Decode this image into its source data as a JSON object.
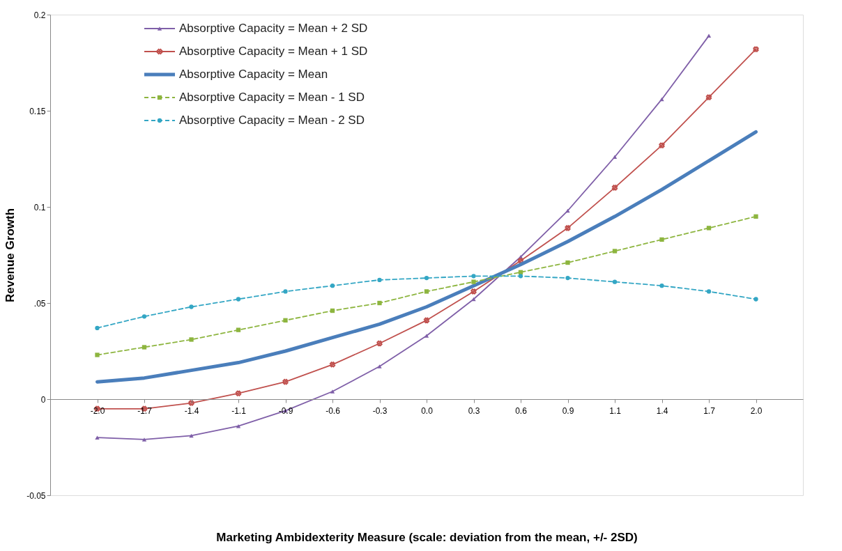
{
  "chart_data": {
    "type": "line",
    "xlabel": "Marketing Ambidexterity Measure (scale: deviation from the mean, +/- 2SD)",
    "ylabel": "Revenue Growth",
    "categories": [
      "-2.0",
      "-1.7",
      "-1.4",
      "-1.1",
      "-0.9",
      "-0.6",
      "-0.3",
      "0.0",
      "0.3",
      "0.6",
      "0.9",
      "1.1",
      "1.4",
      "1.7",
      "2.0"
    ],
    "ylim": [
      -0.05,
      0.2
    ],
    "yticks": [
      {
        "value": -0.05,
        "label": "-0.05"
      },
      0,
      {
        "value": 0.05,
        "label": ".05"
      },
      0.1,
      0.15,
      0.2
    ],
    "grid": false,
    "legend": "top left",
    "series": [
      {
        "name": "Absorptive Capacity = Mean + 2 SD",
        "color": "#7f5fa8",
        "marker": "triangle",
        "line_style": "solid",
        "values": [
          -0.02,
          -0.021,
          -0.019,
          -0.014,
          -0.006,
          0.004,
          0.017,
          0.033,
          0.052,
          0.074,
          0.098,
          0.126,
          0.156,
          0.189,
          null
        ]
      },
      {
        "name": "Absorptive Capacity = Mean + 1 SD",
        "color": "#c0504d",
        "marker": "cross",
        "line_style": "solid",
        "values": [
          -0.005,
          -0.005,
          -0.002,
          0.003,
          0.009,
          0.018,
          0.029,
          0.041,
          0.056,
          0.072,
          0.089,
          0.11,
          0.132,
          0.157,
          0.182
        ]
      },
      {
        "name": "Absorptive Capacity = Mean",
        "color": "#4a7ebb",
        "marker": "none",
        "line_style": "solid",
        "values": [
          0.009,
          0.011,
          0.015,
          0.019,
          0.025,
          0.032,
          0.039,
          0.048,
          0.059,
          0.07,
          0.082,
          0.095,
          0.109,
          0.124,
          0.139
        ]
      },
      {
        "name": "Absorptive Capacity = Mean - 1 SD",
        "color": "#8db53f",
        "marker": "square",
        "line_style": "dashed",
        "values": [
          0.023,
          0.027,
          0.031,
          0.036,
          0.041,
          0.046,
          0.05,
          0.056,
          0.061,
          0.066,
          0.071,
          0.077,
          0.083,
          0.089,
          0.095
        ]
      },
      {
        "name": "Absorptive Capacity = Mean - 2 SD",
        "color": "#33a6c4",
        "marker": "circle",
        "line_style": "dashed",
        "values": [
          0.037,
          0.043,
          0.048,
          0.052,
          0.056,
          0.059,
          0.062,
          0.063,
          0.064,
          0.064,
          0.063,
          0.061,
          0.059,
          0.056,
          0.052
        ]
      }
    ]
  }
}
